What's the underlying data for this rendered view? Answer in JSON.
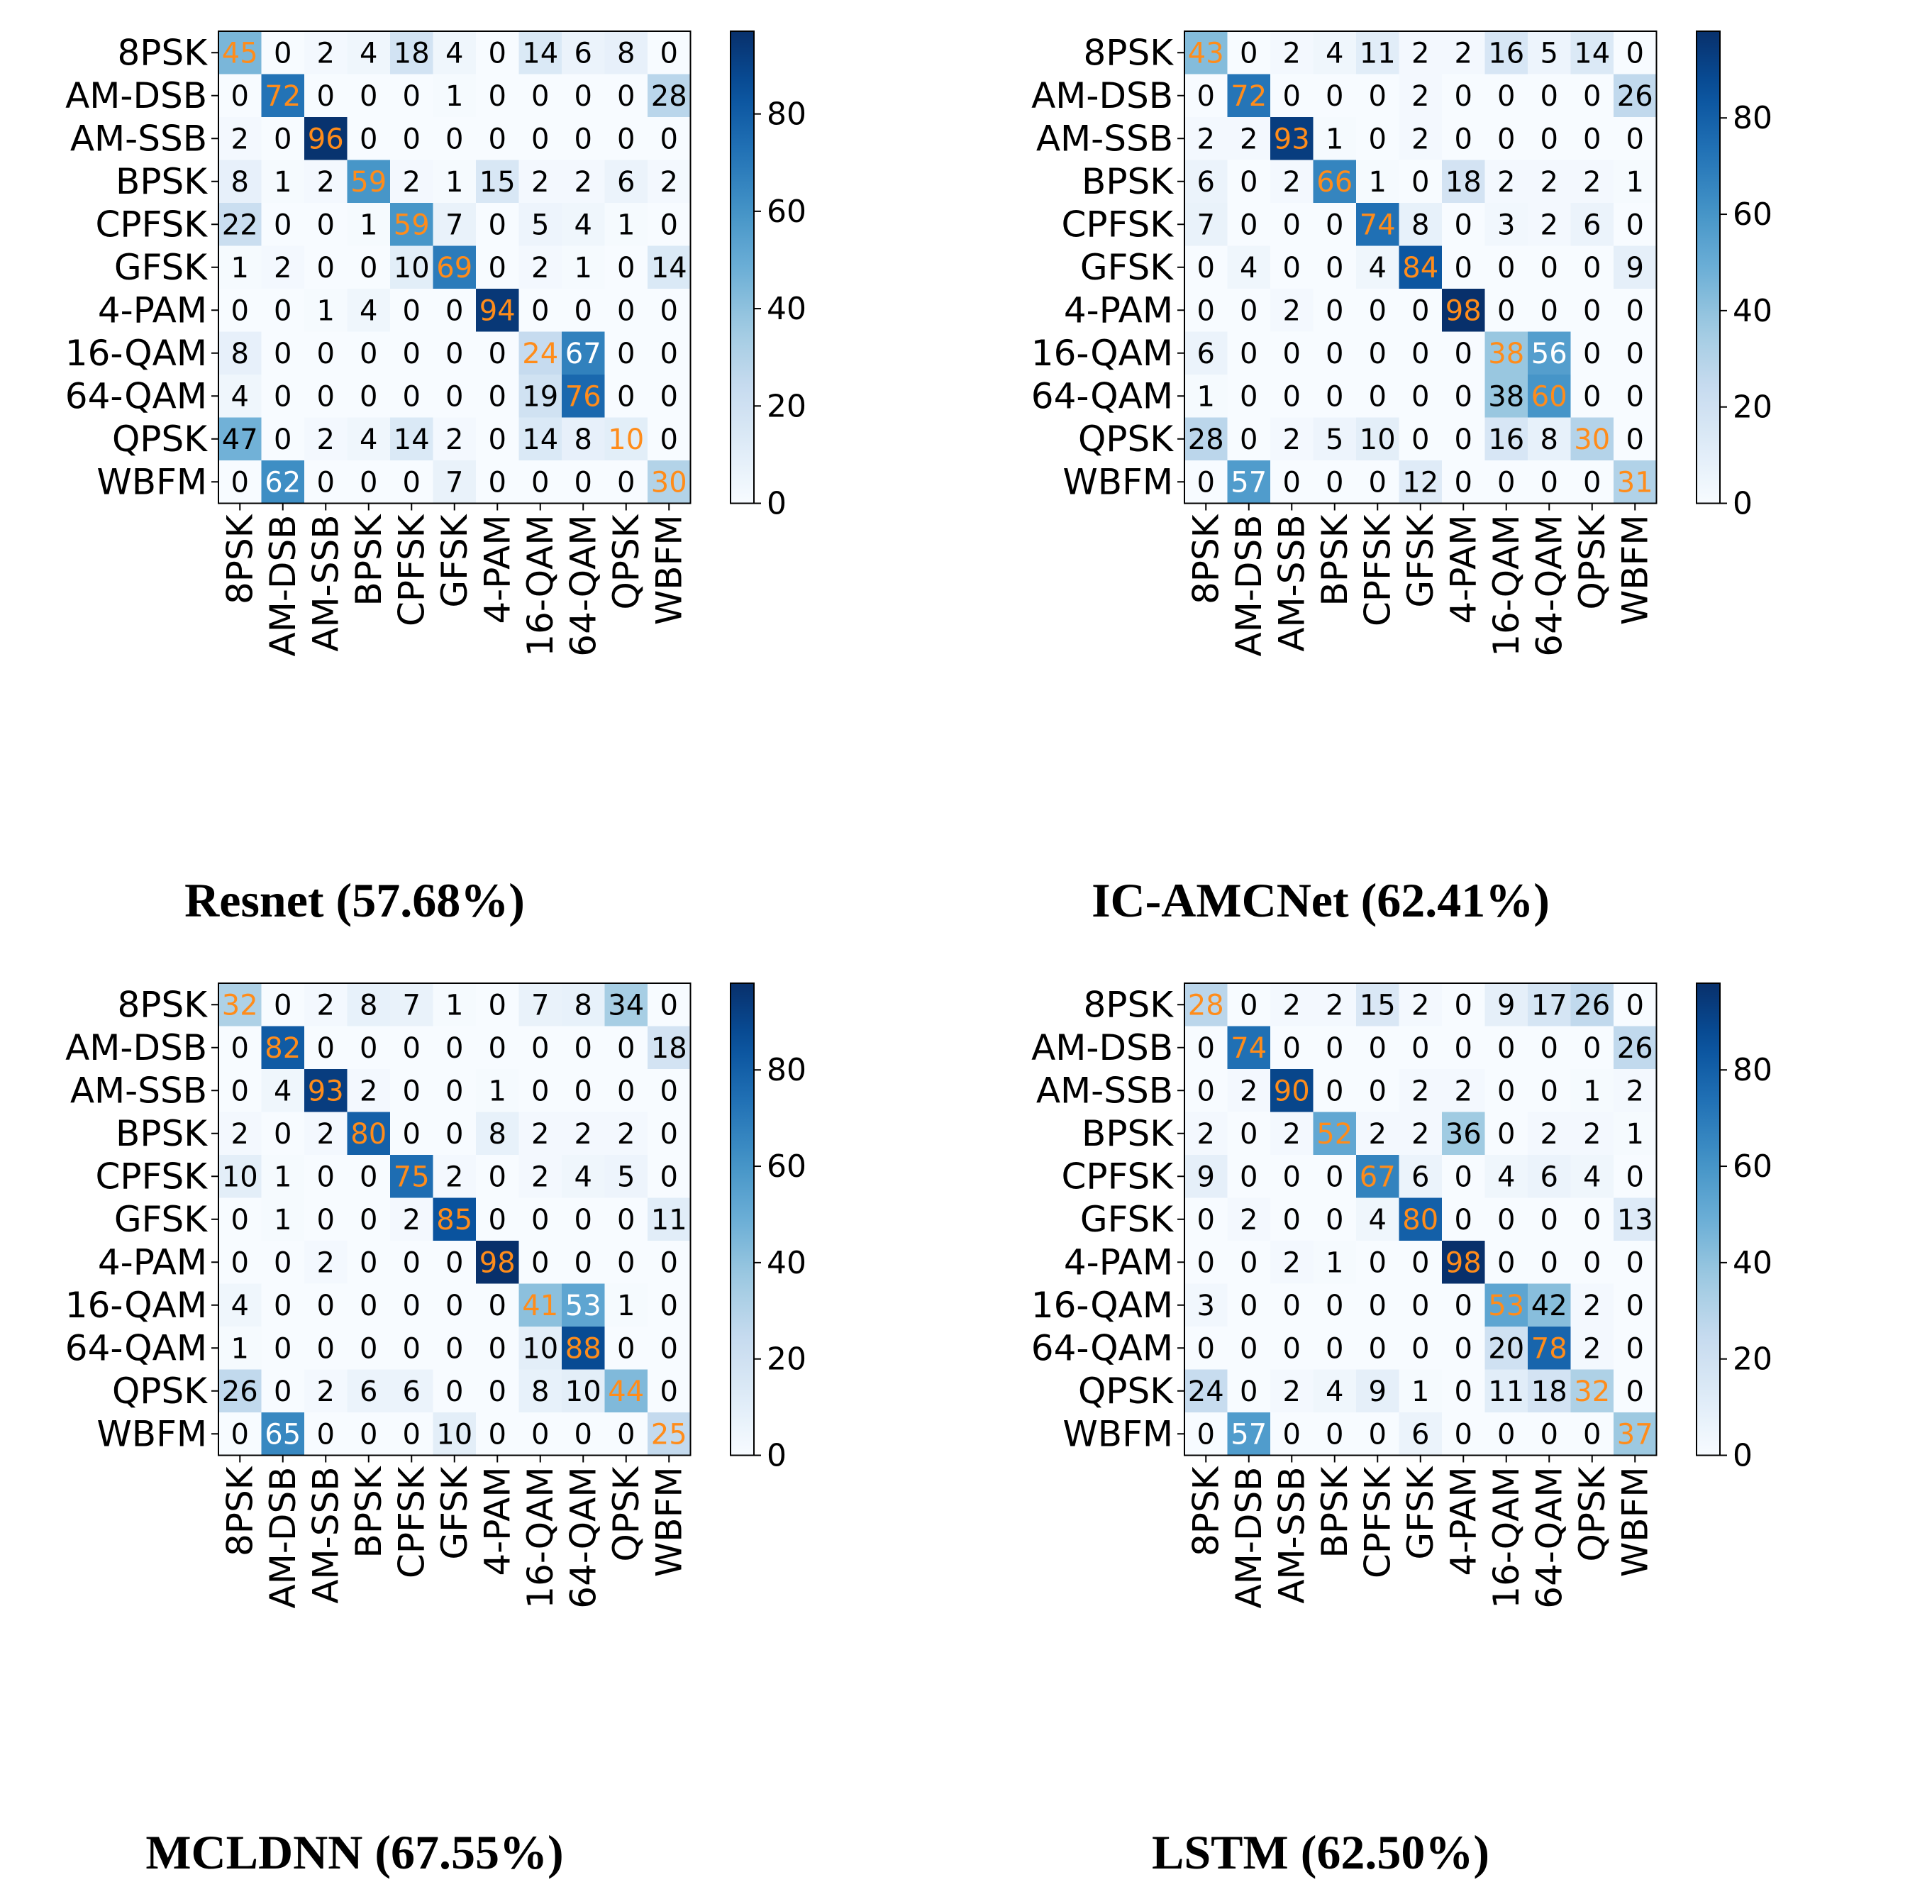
{
  "colors": {
    "diag_text": "#ff8c1a",
    "text_dark": "#000000",
    "text_light": "#ffffff",
    "cmap_low": "#f7fbff",
    "cmap_high": "#08306b"
  },
  "chart_data": [
    {
      "type": "heatmap",
      "title": "Resnet (57.68%)",
      "labels": [
        "8PSK",
        "AM-DSB",
        "AM-SSB",
        "BPSK",
        "CPFSK",
        "GFSK",
        "4-PAM",
        "16-QAM",
        "64-QAM",
        "QPSK",
        "WBFM"
      ],
      "matrix": [
        [
          45,
          0,
          2,
          4,
          18,
          4,
          0,
          14,
          6,
          8,
          0
        ],
        [
          0,
          72,
          0,
          0,
          0,
          1,
          0,
          0,
          0,
          0,
          28
        ],
        [
          2,
          0,
          96,
          0,
          0,
          0,
          0,
          0,
          0,
          0,
          0
        ],
        [
          8,
          1,
          2,
          59,
          2,
          1,
          15,
          2,
          2,
          6,
          2
        ],
        [
          22,
          0,
          0,
          1,
          59,
          7,
          0,
          5,
          4,
          1,
          0
        ],
        [
          1,
          2,
          0,
          0,
          10,
          69,
          0,
          2,
          1,
          0,
          14
        ],
        [
          0,
          0,
          1,
          4,
          0,
          0,
          94,
          0,
          0,
          0,
          0
        ],
        [
          8,
          0,
          0,
          0,
          0,
          0,
          0,
          24,
          67,
          0,
          0
        ],
        [
          4,
          0,
          0,
          0,
          0,
          0,
          0,
          19,
          76,
          0,
          0
        ],
        [
          47,
          0,
          2,
          4,
          14,
          2,
          0,
          14,
          8,
          10,
          0
        ],
        [
          0,
          62,
          0,
          0,
          0,
          7,
          0,
          0,
          0,
          0,
          30
        ]
      ],
      "colorbar": {
        "min": 0,
        "max": 97,
        "ticks": [
          "0",
          "20",
          "40",
          "60",
          "80"
        ]
      }
    },
    {
      "type": "heatmap",
      "title": "IC-AMCNet (62.41%)",
      "labels": [
        "8PSK",
        "AM-DSB",
        "AM-SSB",
        "BPSK",
        "CPFSK",
        "GFSK",
        "4-PAM",
        "16-QAM",
        "64-QAM",
        "QPSK",
        "WBFM"
      ],
      "matrix": [
        [
          43,
          0,
          2,
          4,
          11,
          2,
          2,
          16,
          5,
          14,
          0
        ],
        [
          0,
          72,
          0,
          0,
          0,
          2,
          0,
          0,
          0,
          0,
          26
        ],
        [
          2,
          2,
          93,
          1,
          0,
          2,
          0,
          0,
          0,
          0,
          0
        ],
        [
          6,
          0,
          2,
          66,
          1,
          0,
          18,
          2,
          2,
          2,
          1
        ],
        [
          7,
          0,
          0,
          0,
          74,
          8,
          0,
          3,
          2,
          6,
          0
        ],
        [
          0,
          4,
          0,
          0,
          4,
          84,
          0,
          0,
          0,
          0,
          9
        ],
        [
          0,
          0,
          2,
          0,
          0,
          0,
          98,
          0,
          0,
          0,
          0
        ],
        [
          6,
          0,
          0,
          0,
          0,
          0,
          0,
          38,
          56,
          0,
          0
        ],
        [
          1,
          0,
          0,
          0,
          0,
          0,
          0,
          38,
          60,
          0,
          0
        ],
        [
          28,
          0,
          2,
          5,
          10,
          0,
          0,
          16,
          8,
          30,
          0
        ],
        [
          0,
          57,
          0,
          0,
          0,
          12,
          0,
          0,
          0,
          0,
          31
        ]
      ],
      "colorbar": {
        "min": 0,
        "max": 98,
        "ticks": [
          "0",
          "20",
          "40",
          "60",
          "80"
        ]
      }
    },
    {
      "type": "heatmap",
      "title": "MCLDNN (67.55%)",
      "labels": [
        "8PSK",
        "AM-DSB",
        "AM-SSB",
        "BPSK",
        "CPFSK",
        "GFSK",
        "4-PAM",
        "16-QAM",
        "64-QAM",
        "QPSK",
        "WBFM"
      ],
      "matrix": [
        [
          32,
          0,
          2,
          8,
          7,
          1,
          0,
          7,
          8,
          34,
          0
        ],
        [
          0,
          82,
          0,
          0,
          0,
          0,
          0,
          0,
          0,
          0,
          18
        ],
        [
          0,
          4,
          93,
          2,
          0,
          0,
          1,
          0,
          0,
          0,
          0
        ],
        [
          2,
          0,
          2,
          80,
          0,
          0,
          8,
          2,
          2,
          2,
          0
        ],
        [
          10,
          1,
          0,
          0,
          75,
          2,
          0,
          2,
          4,
          5,
          0
        ],
        [
          0,
          1,
          0,
          0,
          2,
          85,
          0,
          0,
          0,
          0,
          11
        ],
        [
          0,
          0,
          2,
          0,
          0,
          0,
          98,
          0,
          0,
          0,
          0
        ],
        [
          4,
          0,
          0,
          0,
          0,
          0,
          0,
          41,
          53,
          1,
          0
        ],
        [
          1,
          0,
          0,
          0,
          0,
          0,
          0,
          10,
          88,
          0,
          0
        ],
        [
          26,
          0,
          2,
          6,
          6,
          0,
          0,
          8,
          10,
          44,
          0
        ],
        [
          0,
          65,
          0,
          0,
          0,
          10,
          0,
          0,
          0,
          0,
          25
        ]
      ],
      "colorbar": {
        "min": 0,
        "max": 98,
        "ticks": [
          "0",
          "20",
          "40",
          "60",
          "80"
        ]
      }
    },
    {
      "type": "heatmap",
      "title": "LSTM (62.50%)",
      "labels": [
        "8PSK",
        "AM-DSB",
        "AM-SSB",
        "BPSK",
        "CPFSK",
        "GFSK",
        "4-PAM",
        "16-QAM",
        "64-QAM",
        "QPSK",
        "WBFM"
      ],
      "matrix": [
        [
          28,
          0,
          2,
          2,
          15,
          2,
          0,
          9,
          17,
          26,
          0
        ],
        [
          0,
          74,
          0,
          0,
          0,
          0,
          0,
          0,
          0,
          0,
          26
        ],
        [
          0,
          2,
          90,
          0,
          0,
          2,
          2,
          0,
          0,
          1,
          2
        ],
        [
          2,
          0,
          2,
          52,
          2,
          2,
          36,
          0,
          2,
          2,
          1
        ],
        [
          9,
          0,
          0,
          0,
          67,
          6,
          0,
          4,
          6,
          4,
          0
        ],
        [
          0,
          2,
          0,
          0,
          4,
          80,
          0,
          0,
          0,
          0,
          13
        ],
        [
          0,
          0,
          2,
          1,
          0,
          0,
          98,
          0,
          0,
          0,
          0
        ],
        [
          3,
          0,
          0,
          0,
          0,
          0,
          0,
          53,
          42,
          2,
          0
        ],
        [
          0,
          0,
          0,
          0,
          0,
          0,
          0,
          20,
          78,
          2,
          0
        ],
        [
          24,
          0,
          2,
          4,
          9,
          1,
          0,
          11,
          18,
          32,
          0
        ],
        [
          0,
          57,
          0,
          0,
          0,
          6,
          0,
          0,
          0,
          0,
          37
        ]
      ],
      "colorbar": {
        "min": 0,
        "max": 98,
        "ticks": [
          "0",
          "20",
          "40",
          "60",
          "80"
        ]
      }
    }
  ]
}
